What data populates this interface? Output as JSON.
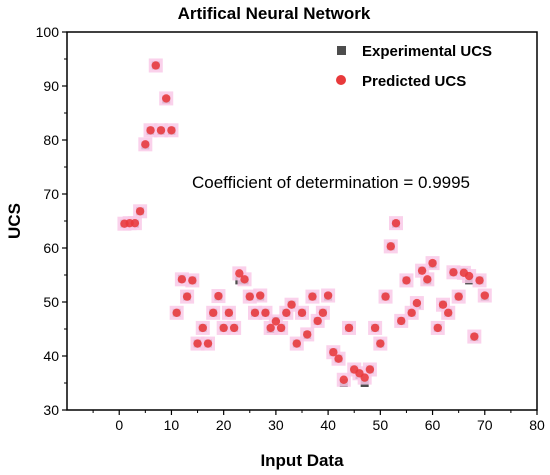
{
  "chart_data": {
    "type": "scatter",
    "title": "Artifical Neural Network",
    "xlabel": "Input Data",
    "ylabel": "UCS",
    "xlim": [
      -10,
      80
    ],
    "ylim": [
      30,
      100
    ],
    "xticks": [
      0,
      10,
      20,
      30,
      40,
      50,
      60,
      70,
      80
    ],
    "yticks": [
      30,
      40,
      50,
      60,
      70,
      80,
      90,
      100
    ],
    "grid": false,
    "legend_position": "top-right",
    "annotation": "Coefficient of determination = 0.9995",
    "colors": {
      "experimental": "#4d4d4d",
      "predicted": "#e8393b",
      "predicted_halo": "#f9c9e8",
      "axis": "#000000"
    },
    "series": [
      {
        "name": "Experimental UCS",
        "marker": "square",
        "x": [
          1,
          2,
          3,
          4,
          5,
          6,
          7,
          8,
          9,
          10,
          11,
          12,
          13,
          14,
          15,
          16,
          17,
          18,
          19,
          20,
          21,
          22,
          23,
          24,
          25,
          26,
          27,
          28,
          29,
          30,
          31,
          32,
          33,
          34,
          35,
          36,
          37,
          38,
          39,
          40,
          41,
          42,
          43,
          44,
          45,
          46,
          47,
          48,
          49,
          50,
          51,
          52,
          53,
          54,
          55,
          56,
          57,
          58,
          59,
          60,
          61,
          62,
          63,
          64,
          65,
          66,
          67,
          68,
          69,
          70
        ],
        "y": [
          64.5,
          64.5,
          64.5,
          66.8,
          79,
          81.7,
          93.8,
          81.7,
          87.5,
          81.7,
          48,
          54.3,
          51,
          54,
          42.3,
          45.2,
          42.3,
          48,
          51,
          45.2,
          48,
          45.2,
          54,
          54,
          51,
          48,
          51,
          48,
          45,
          46.5,
          45.2,
          48,
          49.5,
          42.3,
          48,
          43.9,
          51,
          46.5,
          48,
          51,
          40.7,
          39.5,
          35,
          45.2,
          37.5,
          36.5,
          35,
          37.5,
          45.2,
          42.3,
          51,
          60.3,
          64.5,
          46.5,
          54,
          48,
          49.5,
          55.8,
          54,
          57,
          45.2,
          49.5,
          48,
          55.5,
          51,
          55.5,
          54,
          43.5,
          54,
          51
        ]
      },
      {
        "name": "Predicted UCS",
        "marker": "circle",
        "x": [
          1,
          2,
          3,
          4,
          5,
          6,
          7,
          8,
          9,
          10,
          11,
          12,
          13,
          14,
          15,
          16,
          17,
          18,
          19,
          20,
          21,
          22,
          23,
          24,
          25,
          26,
          27,
          28,
          29,
          30,
          31,
          32,
          33,
          34,
          35,
          36,
          37,
          38,
          39,
          40,
          41,
          42,
          43,
          44,
          45,
          46,
          47,
          48,
          49,
          50,
          51,
          52,
          53,
          54,
          55,
          56,
          57,
          58,
          59,
          60,
          61,
          62,
          63,
          64,
          65,
          66,
          67,
          68,
          69,
          70
        ],
        "y": [
          64.5,
          64.6,
          64.6,
          66.8,
          79.2,
          81.8,
          93.8,
          81.8,
          87.7,
          81.8,
          48,
          54.2,
          51,
          54,
          42.3,
          45.2,
          42.3,
          48,
          51.1,
          45.2,
          48,
          45.2,
          55.3,
          54.2,
          51,
          48,
          51.2,
          48,
          45.2,
          46.4,
          45.2,
          48,
          49.5,
          42.3,
          48,
          44,
          51,
          46.5,
          48,
          51.2,
          40.7,
          39.5,
          35.6,
          45.2,
          37.5,
          36.8,
          36,
          37.5,
          45.2,
          42.3,
          51,
          60.3,
          64.6,
          46.5,
          54,
          48,
          49.8,
          55.8,
          54.2,
          57.2,
          45.2,
          49.5,
          48,
          55.5,
          51,
          55.4,
          54.8,
          43.6,
          54,
          51.2
        ]
      }
    ]
  }
}
